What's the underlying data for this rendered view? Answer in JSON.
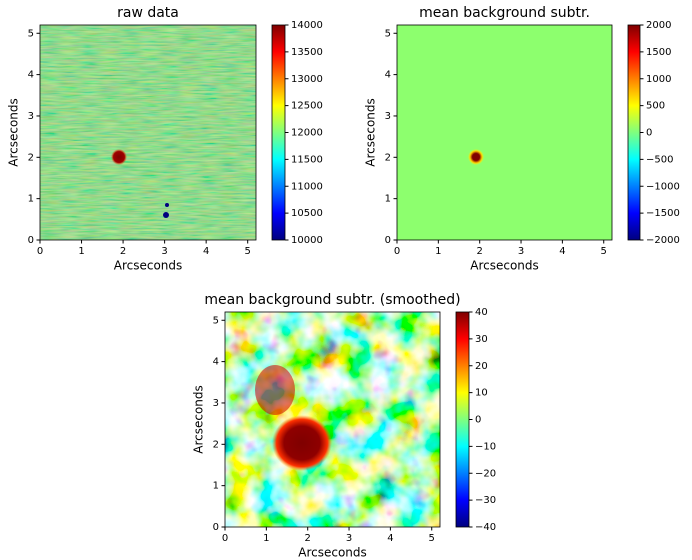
{
  "chart_data": [
    {
      "type": "heatmap",
      "title": "raw data",
      "xlabel": "Arcseconds",
      "ylabel": "Arcseconds",
      "xlim": [
        0,
        5.2
      ],
      "ylim": [
        0,
        5.2
      ],
      "xticks": [
        0,
        1,
        2,
        3,
        4,
        5
      ],
      "yticks": [
        0,
        1,
        2,
        3,
        4,
        5
      ],
      "colormap": "jet",
      "clim": [
        10000,
        14000
      ],
      "cticks": [
        10000,
        10500,
        11000,
        11500,
        12000,
        12500,
        13000,
        13500,
        14000
      ]
    },
    {
      "type": "heatmap",
      "title": "mean background subtr.",
      "xlabel": "Arcseconds",
      "ylabel": "Arcseconds",
      "xlim": [
        0,
        5.2
      ],
      "ylim": [
        0,
        5.2
      ],
      "xticks": [
        0,
        1,
        2,
        3,
        4,
        5
      ],
      "yticks": [
        0,
        1,
        2,
        3,
        4,
        5
      ],
      "colormap": "jet",
      "clim": [
        -2000,
        2000
      ],
      "cticks": [
        {
          "value": -2000,
          "label": "−2000"
        },
        {
          "value": -1500,
          "label": "−1500"
        },
        {
          "value": -1000,
          "label": "−1000"
        },
        {
          "value": -500,
          "label": "−500"
        },
        0,
        500,
        1000,
        1500,
        2000
      ]
    },
    {
      "type": "heatmap",
      "title": "mean background subtr. (smoothed)",
      "xlabel": "Arcseconds",
      "ylabel": "Arcseconds",
      "xlim": [
        0,
        5.2
      ],
      "ylim": [
        0,
        5.2
      ],
      "xticks": [
        0,
        1,
        2,
        3,
        4,
        5
      ],
      "yticks": [
        0,
        1,
        2,
        3,
        4,
        5
      ],
      "colormap": "jet",
      "clim": [
        -40,
        40
      ],
      "cticks": [
        {
          "value": -40,
          "label": "−40"
        },
        {
          "value": -30,
          "label": "−30"
        },
        {
          "value": -20,
          "label": "−20"
        },
        {
          "value": -10,
          "label": "−10"
        },
        0,
        10,
        20,
        30,
        40
      ]
    }
  ]
}
